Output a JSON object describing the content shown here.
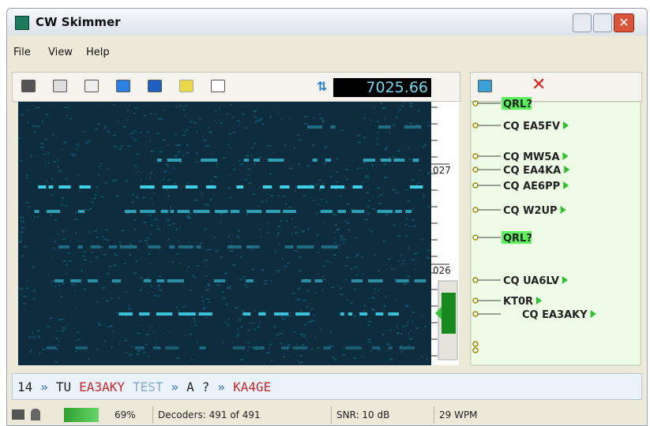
{
  "window": {
    "title": "CW Skimmer"
  },
  "menu": [
    "File",
    "View",
    "Help"
  ],
  "frequency": "7025.66",
  "scale_labels": [
    "027",
    "026"
  ],
  "spots": [
    {
      "text": "QRL?",
      "highlight": true
    },
    {
      "text": "CQ EA5FV",
      "highlight": false
    },
    {
      "text": "CQ MW5A",
      "highlight": false
    },
    {
      "text": "CQ EA4KA",
      "highlight": false
    },
    {
      "text": "CQ AE6PP",
      "highlight": false
    },
    {
      "text": "CQ W2UP",
      "highlight": false
    },
    {
      "text": "QRL?",
      "highlight": true
    },
    {
      "text": "CQ UA6LV",
      "highlight": false
    },
    {
      "text": "KT0R",
      "highlight": false
    },
    {
      "text": "CQ EA3AKY",
      "highlight": false
    }
  ],
  "decoded": [
    {
      "text": "14",
      "color": "#222222"
    },
    {
      "text": "»",
      "color": "#3a6fc0"
    },
    {
      "text": "TU",
      "color": "#222222"
    },
    {
      "text": "EA3AKY",
      "color": "#c8262a"
    },
    {
      "text": "TEST",
      "color": "#8aa6cc"
    },
    {
      "text": "»",
      "color": "#3a6fc0"
    },
    {
      "text": "A",
      "color": "#222222"
    },
    {
      "text": "?",
      "color": "#222222"
    },
    {
      "text": "»",
      "color": "#3a6fc0"
    },
    {
      "text": "KA4GE",
      "color": "#c8262a"
    }
  ],
  "status": {
    "cpu": "69%",
    "decoders": "Decoders: 491 of 491",
    "snr": "SNR: 10 dB",
    "wpm": "29 WPM"
  }
}
